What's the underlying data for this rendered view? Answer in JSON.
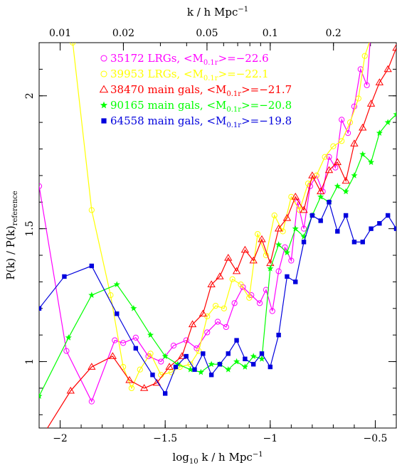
{
  "chart_data": {
    "type": "line",
    "xlabel_main": "log",
    "xlabel_sub": "10",
    "xlabel_rest": " k  /  h Mpc",
    "xlabel_sup": "−1",
    "top_label": "k  /  h Mpc",
    "top_label_sup": "−1",
    "ylabel": "P(k) / P(k)",
    "ylabel_sub": "reference",
    "xlim": [
      -2.1,
      -0.4
    ],
    "ylim": [
      0.75,
      2.2
    ],
    "x_ticks": [
      {
        "v": -2,
        "label": "−2"
      },
      {
        "v": -1.5,
        "label": "−1.5"
      },
      {
        "v": -1,
        "label": "−1"
      },
      {
        "v": -0.5,
        "label": "−0.5"
      }
    ],
    "y_ticks": [
      {
        "v": 1,
        "label": "1"
      },
      {
        "v": 1.5,
        "label": "1.5"
      },
      {
        "v": 2,
        "label": "2"
      }
    ],
    "top_ticks": [
      {
        "k": 0.01,
        "label": "0.01"
      },
      {
        "k": 0.02,
        "label": "0.02"
      },
      {
        "k": 0.05,
        "label": "0.05"
      },
      {
        "k": 0.1,
        "label": "0.1"
      },
      {
        "k": 0.2,
        "label": "0.2"
      }
    ],
    "series": [
      {
        "name": "35172 LRGs",
        "legend_prefix": "35172 LRGs, <M",
        "legend_sub": "0.1r",
        "legend_suffix": ">=−22.6",
        "color": "#ff00ff",
        "marker": "circle",
        "x": [
          -2.1,
          -1.97,
          -1.85,
          -1.74,
          -1.7,
          -1.64,
          -1.58,
          -1.52,
          -1.46,
          -1.4,
          -1.35,
          -1.3,
          -1.25,
          -1.21,
          -1.17,
          -1.13,
          -1.09,
          -1.05,
          -1.02,
          -0.99,
          -0.96,
          -0.93,
          -0.9,
          -0.87,
          -0.84,
          -0.81,
          -0.78,
          -0.75,
          -0.72,
          -0.69,
          -0.66,
          -0.63,
          -0.6,
          -0.57,
          -0.54,
          -0.52,
          -0.5
        ],
        "y": [
          1.66,
          1.04,
          0.85,
          1.08,
          1.07,
          1.09,
          1.02,
          1.0,
          1.06,
          1.08,
          1.05,
          1.11,
          1.15,
          1.13,
          1.22,
          1.28,
          1.25,
          1.22,
          1.27,
          1.19,
          1.34,
          1.43,
          1.38,
          1.6,
          1.5,
          1.66,
          1.7,
          1.64,
          1.77,
          1.73,
          1.91,
          1.86,
          1.96,
          2.1,
          2.04,
          2.25,
          2.28
        ]
      },
      {
        "name": "39953 LRGs",
        "legend_prefix": "39953 LRGs, <M",
        "legend_sub": "0.1r",
        "legend_suffix": ">=−22.1",
        "color": "#ffff00",
        "marker": "circle",
        "x": [
          -1.94,
          -1.85,
          -1.76,
          -1.7,
          -1.66,
          -1.62,
          -1.57,
          -1.52,
          -1.47,
          -1.43,
          -1.38,
          -1.34,
          -1.3,
          -1.26,
          -1.22,
          -1.18,
          -1.14,
          -1.1,
          -1.06,
          -1.02,
          -0.98,
          -0.94,
          -0.9,
          -0.86,
          -0.82,
          -0.78,
          -0.74,
          -0.7,
          -0.66,
          -0.62,
          -0.58,
          -0.55,
          -0.52
        ],
        "y": [
          2.2,
          1.57,
          1.25,
          0.98,
          0.9,
          0.97,
          1.03,
          0.95,
          0.96,
          0.98,
          0.99,
          1.04,
          1.17,
          1.21,
          1.2,
          1.31,
          1.29,
          1.24,
          1.48,
          1.4,
          1.55,
          1.49,
          1.62,
          1.57,
          1.67,
          1.7,
          1.77,
          1.81,
          1.83,
          1.9,
          1.99,
          2.15,
          2.22
        ]
      },
      {
        "name": "38470 main gals",
        "legend_prefix": "38470 main gals, <M",
        "legend_sub": "0.1r",
        "legend_suffix": ">=−21.7",
        "color": "#ff0000",
        "marker": "triangle",
        "x": [
          -2.1,
          -1.95,
          -1.85,
          -1.75,
          -1.67,
          -1.6,
          -1.54,
          -1.48,
          -1.42,
          -1.37,
          -1.32,
          -1.28,
          -1.24,
          -1.2,
          -1.16,
          -1.12,
          -1.08,
          -1.04,
          -1.0,
          -0.96,
          -0.92,
          -0.88,
          -0.84,
          -0.8,
          -0.76,
          -0.72,
          -0.68,
          -0.64,
          -0.6,
          -0.56,
          -0.52,
          -0.48,
          -0.44,
          -0.4
        ],
        "y": [
          0.7,
          0.89,
          0.98,
          1.02,
          0.93,
          0.9,
          0.92,
          0.98,
          1.02,
          1.14,
          1.18,
          1.29,
          1.32,
          1.39,
          1.34,
          1.42,
          1.38,
          1.46,
          1.37,
          1.5,
          1.54,
          1.62,
          1.57,
          1.7,
          1.64,
          1.72,
          1.75,
          1.68,
          1.82,
          1.88,
          1.97,
          2.05,
          2.1,
          2.18
        ]
      },
      {
        "name": "90165 main gals",
        "legend_prefix": "90165 main gals, <M",
        "legend_sub": "0.1r",
        "legend_suffix": ">=−20.8",
        "color": "#00ff00",
        "marker": "star",
        "x": [
          -2.1,
          -1.96,
          -1.85,
          -1.73,
          -1.65,
          -1.57,
          -1.5,
          -1.44,
          -1.38,
          -1.33,
          -1.28,
          -1.24,
          -1.2,
          -1.16,
          -1.12,
          -1.08,
          -1.04,
          -1.0,
          -0.96,
          -0.92,
          -0.88,
          -0.84,
          -0.8,
          -0.76,
          -0.72,
          -0.68,
          -0.64,
          -0.6,
          -0.56,
          -0.52,
          -0.48,
          -0.44,
          -0.4
        ],
        "y": [
          0.87,
          1.09,
          1.25,
          1.29,
          1.2,
          1.1,
          1.02,
          0.99,
          0.97,
          0.96,
          0.99,
          0.99,
          0.97,
          1.0,
          0.98,
          1.02,
          1.01,
          1.35,
          1.44,
          1.41,
          1.5,
          1.47,
          1.55,
          1.62,
          1.6,
          1.66,
          1.64,
          1.7,
          1.78,
          1.75,
          1.86,
          1.9,
          1.93
        ]
      },
      {
        "name": "64558 main gals",
        "legend_prefix": "64558 main gals, <M",
        "legend_sub": "0.1r",
        "legend_suffix": ">=−19.8",
        "color": "#0000dd",
        "marker": "square",
        "x": [
          -2.1,
          -1.98,
          -1.85,
          -1.73,
          -1.64,
          -1.56,
          -1.5,
          -1.45,
          -1.4,
          -1.36,
          -1.32,
          -1.28,
          -1.24,
          -1.2,
          -1.16,
          -1.12,
          -1.08,
          -1.04,
          -1.0,
          -0.96,
          -0.92,
          -0.88,
          -0.84,
          -0.8,
          -0.76,
          -0.72,
          -0.68,
          -0.64,
          -0.6,
          -0.56,
          -0.52,
          -0.48,
          -0.44,
          -0.4
        ],
        "y": [
          1.2,
          1.32,
          1.36,
          1.18,
          1.05,
          0.95,
          0.88,
          0.98,
          1.02,
          0.97,
          1.03,
          0.95,
          0.99,
          1.03,
          1.08,
          1.01,
          0.99,
          1.03,
          0.98,
          1.1,
          1.32,
          1.3,
          1.45,
          1.55,
          1.53,
          1.6,
          1.49,
          1.55,
          1.45,
          1.45,
          1.5,
          1.52,
          1.55,
          1.5
        ]
      }
    ]
  }
}
